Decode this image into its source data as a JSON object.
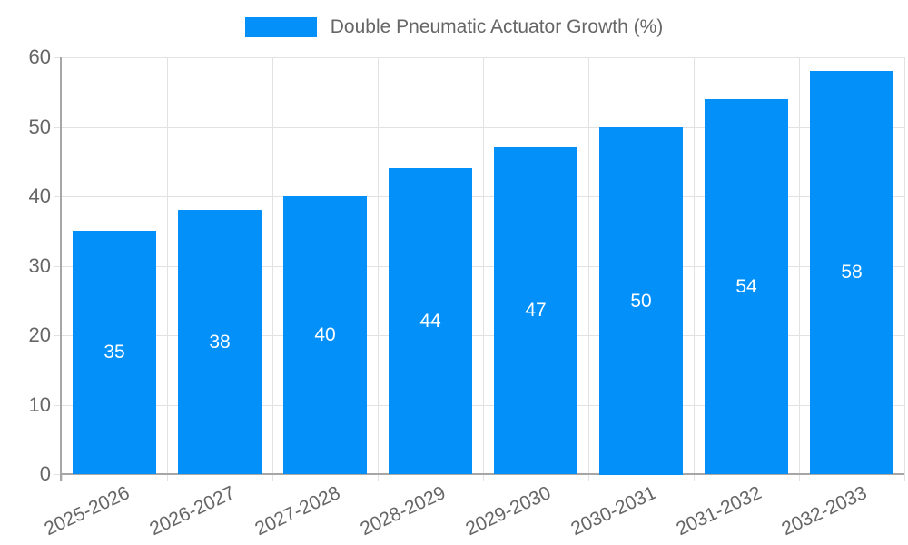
{
  "chart_data": {
    "type": "bar",
    "title": "Double Pneumatic Actuator Growth (%)",
    "categories": [
      "2025-2026",
      "2026-2027",
      "2027-2028",
      "2028-2029",
      "2029-2030",
      "2030-2031",
      "2031-2032",
      "2032-2033"
    ],
    "values": [
      35,
      38,
      40,
      44,
      47,
      50,
      54,
      58
    ],
    "xlabel": "",
    "ylabel": "",
    "ylim": [
      0,
      60
    ],
    "yticks": [
      0,
      10,
      20,
      30,
      40,
      50,
      60
    ],
    "grid": true,
    "legend_position": "top",
    "bar_labels_inside": true
  },
  "legend": {
    "label": "Double Pneumatic Actuator Growth (%)"
  },
  "colors": {
    "bar": "#0390f8",
    "grid": "#e2e2e2",
    "axis": "#a6a6a6",
    "text": "#666666",
    "bar_label": "#ffffff",
    "background": "#ffffff"
  }
}
